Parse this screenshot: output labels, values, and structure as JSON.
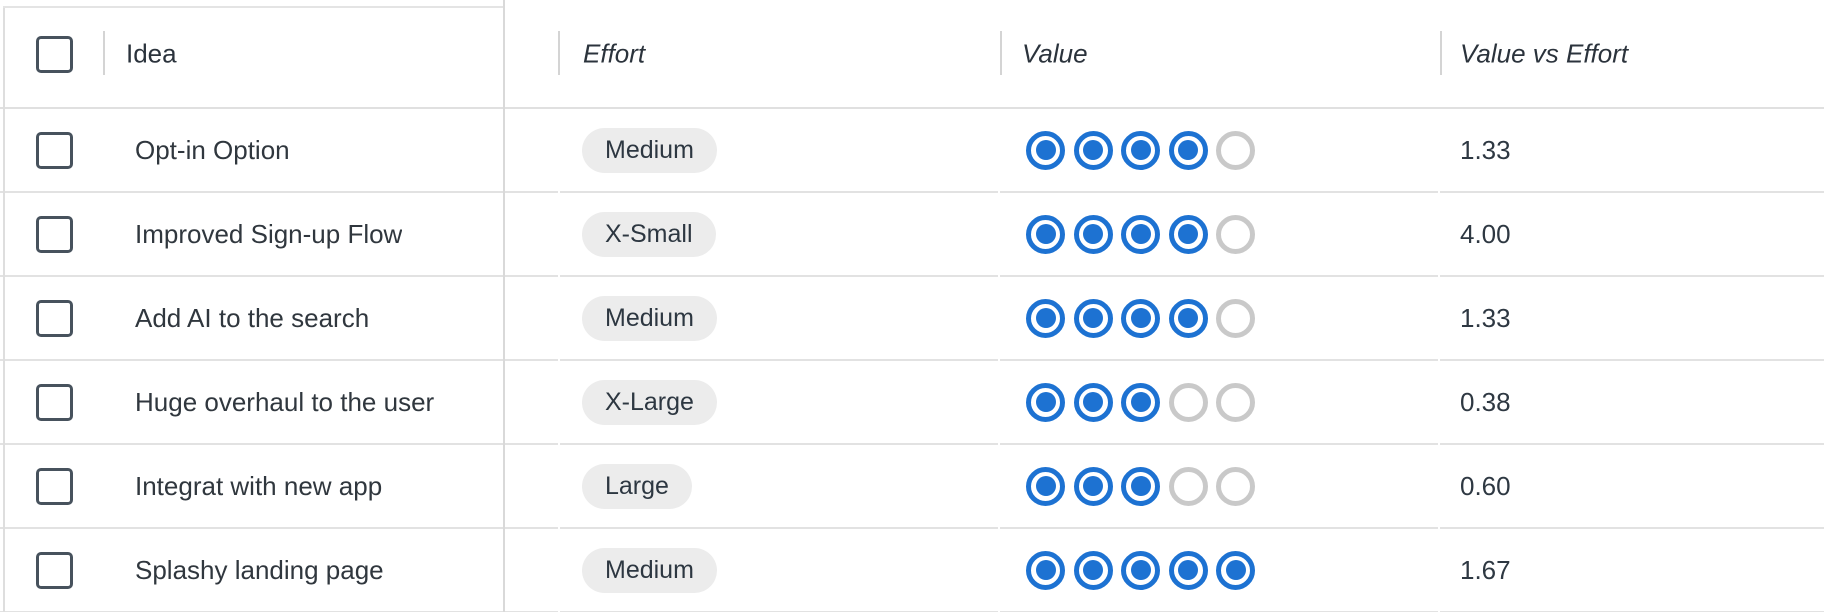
{
  "table": {
    "columns": [
      {
        "label": "Idea",
        "italic": false
      },
      {
        "label": "Effort",
        "italic": true
      },
      {
        "label": "Value",
        "italic": true
      },
      {
        "label": "Value vs Effort",
        "italic": true
      }
    ],
    "rating_max": 5,
    "rows": [
      {
        "idea": "Opt-in Option",
        "effort": "Medium",
        "value": 4,
        "value_vs_effort": "1.33",
        "checked": false
      },
      {
        "idea": "Improved Sign-up Flow",
        "effort": "X-Small",
        "value": 4,
        "value_vs_effort": "4.00",
        "checked": false
      },
      {
        "idea": "Add AI to the search",
        "effort": "Medium",
        "value": 4,
        "value_vs_effort": "1.33",
        "checked": false
      },
      {
        "idea": "Huge overhaul to the user",
        "effort": "X-Large",
        "value": 3,
        "value_vs_effort": "0.38",
        "checked": false
      },
      {
        "idea": "Integrat with new app",
        "effort": "Large",
        "value": 3,
        "value_vs_effort": "0.60",
        "checked": false
      },
      {
        "idea": "Splashy landing page",
        "effort": "Medium",
        "value": 5,
        "value_vs_effort": "1.67",
        "checked": false
      }
    ]
  },
  "colors": {
    "rating_filled": "#1d72d2",
    "rating_empty": "#c9c9c9",
    "pill_background": "#ececec",
    "row_separator": "#e2e2e2",
    "column_border": "#d9d9d9",
    "checkbox_border": "#47525d",
    "text": "#2e363e"
  },
  "icons": {
    "checkbox": "empty-square",
    "rating": "concentric-circle"
  }
}
